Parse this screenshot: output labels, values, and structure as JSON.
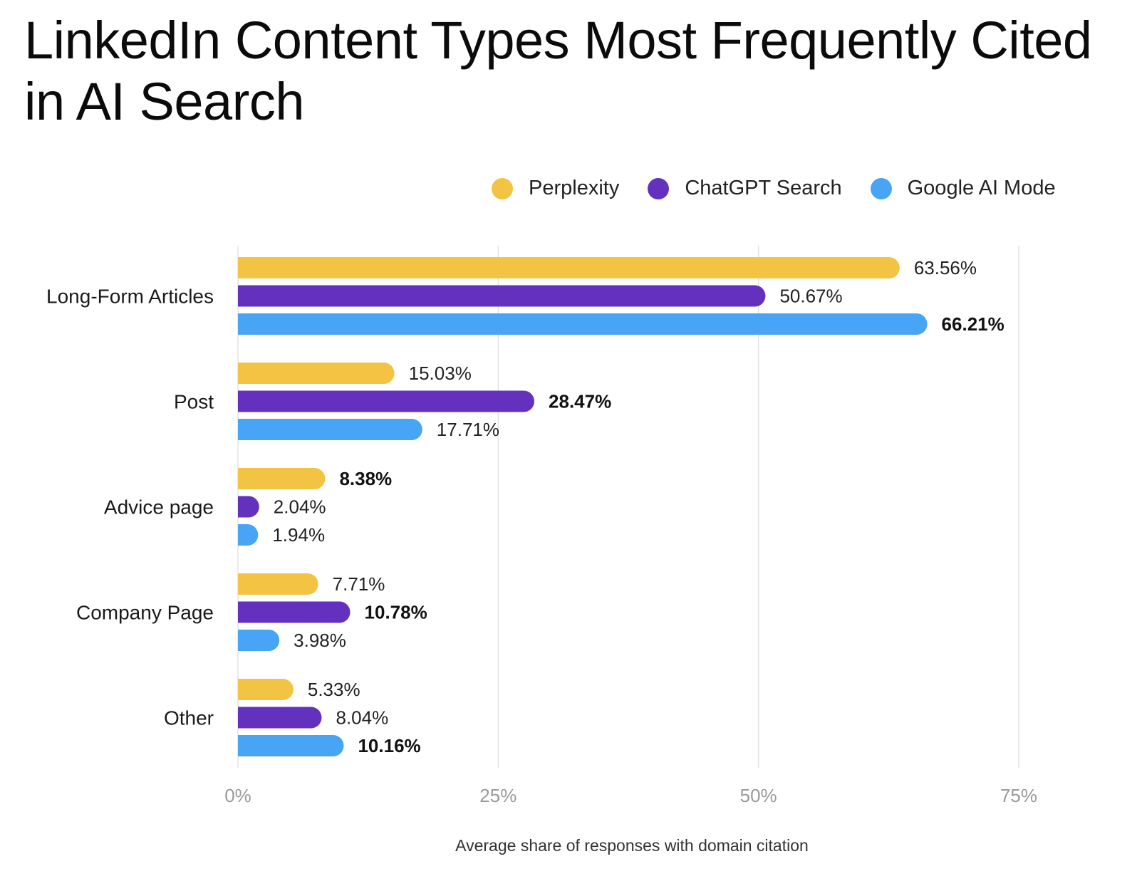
{
  "chart_data": {
    "type": "bar",
    "orientation": "horizontal",
    "title": "LinkedIn Content Types Most Frequently Cited in AI Search",
    "categories": [
      "Long-Form Articles",
      "Post",
      "Advice page",
      "Company Page",
      "Other"
    ],
    "series": [
      {
        "name": "Perplexity",
        "color": "#F3C443",
        "values": [
          63.56,
          15.03,
          8.38,
          7.71,
          5.33
        ],
        "labels": [
          "63.56%",
          "15.03%",
          "8.38%",
          "7.71%",
          "5.33%"
        ]
      },
      {
        "name": "ChatGPT Search",
        "color": "#6431BE",
        "values": [
          50.67,
          28.47,
          2.04,
          10.78,
          8.04
        ],
        "labels": [
          "50.67%",
          "28.47%",
          "2.04%",
          "10.78%",
          "8.04%"
        ]
      },
      {
        "name": "Google AI Mode",
        "color": "#48A4F4",
        "values": [
          66.21,
          17.71,
          1.94,
          3.98,
          10.16
        ],
        "labels": [
          "66.21%",
          "17.71%",
          "1.94%",
          "3.98%",
          "10.16%"
        ]
      }
    ],
    "xlabel": "Average share of responses with domain citation",
    "ylabel": "",
    "xlim": [
      0,
      75
    ],
    "xticks": [
      0,
      25,
      50,
      75
    ],
    "xtick_labels": [
      "0%",
      "25%",
      "50%",
      "75%"
    ],
    "grid": "vertical",
    "legend_position": "top-right"
  }
}
